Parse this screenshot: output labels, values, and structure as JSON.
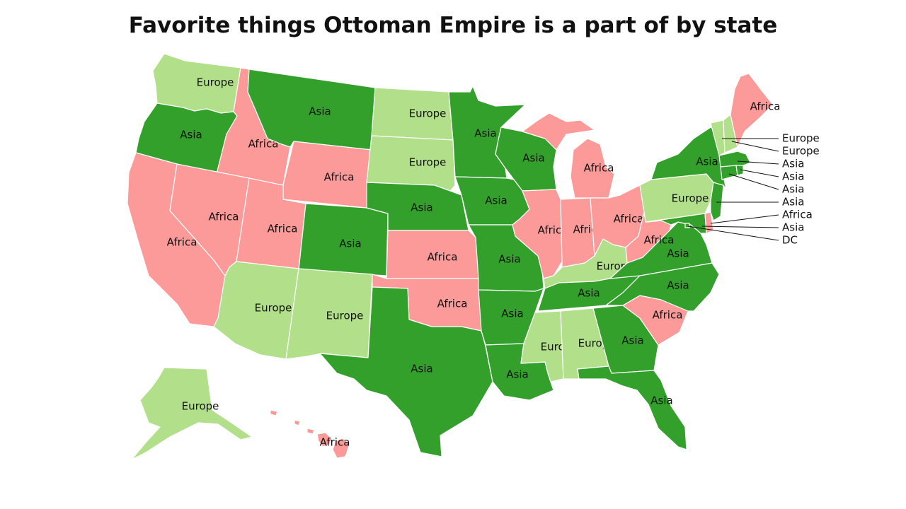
{
  "title": "Favorite things Ottoman Empire is a part of by state",
  "colors": {
    "Asia": "#33a02c",
    "Europe": "#b2df8a",
    "Africa": "#fb9a99"
  },
  "states": {
    "WA": "Europe",
    "OR": "Asia",
    "CA": "Africa",
    "NV": "Africa",
    "ID": "Africa",
    "MT": "Asia",
    "WY": "Africa",
    "UT": "Africa",
    "AZ": "Europe",
    "CO": "Asia",
    "NM": "Europe",
    "ND": "Europe",
    "SD": "Europe",
    "NE": "Asia",
    "KS": "Africa",
    "OK": "Africa",
    "TX": "Asia",
    "MN": "Asia",
    "IA": "Asia",
    "MO": "Asia",
    "AR": "Asia",
    "LA": "Asia",
    "WI": "Asia",
    "IL": "Africa",
    "MI": "Africa",
    "IN": "Africa",
    "OH": "Africa",
    "KY": "Europe",
    "TN": "Asia",
    "MS": "Europe",
    "AL": "Europe",
    "GA": "Asia",
    "FL": "Asia",
    "SC": "Africa",
    "NC": "Asia",
    "VA": "Asia",
    "WV": "Africa",
    "PA": "Europe",
    "NY": "Asia",
    "ME": "Africa",
    "AK": "Europe",
    "HI": "Africa",
    "VT": "Europe",
    "NH": "Europe",
    "MA": "Asia",
    "RI": "Asia",
    "CT": "Asia",
    "NJ": "Asia",
    "DE": "Africa",
    "MD": "Asia",
    "DC": "DC"
  },
  "callouts": [
    {
      "state": "VT",
      "label": "Europe"
    },
    {
      "state": "NH",
      "label": "Europe"
    },
    {
      "state": "MA",
      "label": "Asia"
    },
    {
      "state": "RI",
      "label": "Asia"
    },
    {
      "state": "CT",
      "label": "Asia"
    },
    {
      "state": "NJ",
      "label": "Asia"
    },
    {
      "state": "DE",
      "label": "Africa"
    },
    {
      "state": "MD",
      "label": "Asia"
    },
    {
      "state": "DC",
      "label": "DC"
    }
  ]
}
